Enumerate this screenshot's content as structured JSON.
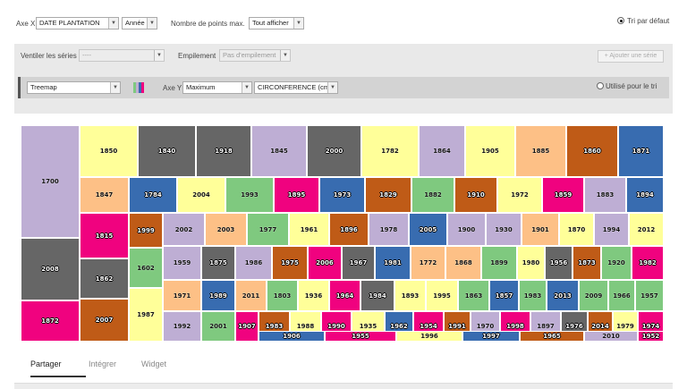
{
  "toolbar": {
    "axis_x_label": "Axe X",
    "axis_x_value": "DATE PLANTATION",
    "axis_x_unit": "Année",
    "max_points_label": "Nombre de points max.",
    "max_points_value": "Tout afficher",
    "default_sort_label": "Tri par défaut"
  },
  "series_panel": {
    "split_label": "Ventiler les séries",
    "split_value": "----",
    "stacking_label": "Empilement",
    "stacking_value": "Pas d'empilement",
    "add_series_button": "+ Ajouter une série",
    "chart_type": "Treemap",
    "axis_y_label": "Axe Y",
    "aggregation": "Maximum",
    "field": "CIRCONFERENCE (cm)",
    "use_for_sort_label": "Utilisé pour le tri",
    "swatch_colors": [
      "#7fc97f",
      "#beaed4",
      "#386cb0",
      "#f0027f"
    ]
  },
  "tabs": [
    {
      "label": "Partager",
      "active": true
    },
    {
      "label": "Intégrer",
      "active": false
    },
    {
      "label": "Widget",
      "active": false
    }
  ],
  "chart_data": {
    "type": "treemap",
    "palette": {
      "lavender": "#beaed4",
      "yellow": "#ffff99",
      "gray": "#666666",
      "orange": "#fdc086",
      "rust": "#bf5b17",
      "blue": "#386cb0",
      "green": "#7fc97f",
      "magenta": "#f0027f"
    },
    "cells": [
      {
        "label": "1700",
        "color": "lavender"
      },
      {
        "label": "2008",
        "color": "gray"
      },
      {
        "label": "1872",
        "color": "magenta"
      },
      {
        "label": "1850",
        "color": "yellow"
      },
      {
        "label": "1840",
        "color": "gray"
      },
      {
        "label": "1918",
        "color": "gray"
      },
      {
        "label": "1845",
        "color": "lavender"
      },
      {
        "label": "2000",
        "color": "gray"
      },
      {
        "label": "1782",
        "color": "yellow"
      },
      {
        "label": "1864",
        "color": "lavender"
      },
      {
        "label": "1905",
        "color": "yellow"
      },
      {
        "label": "1885",
        "color": "orange"
      },
      {
        "label": "1860",
        "color": "rust"
      },
      {
        "label": "1871",
        "color": "blue"
      },
      {
        "label": "1847",
        "color": "orange"
      },
      {
        "label": "1784",
        "color": "blue"
      },
      {
        "label": "2004",
        "color": "yellow"
      },
      {
        "label": "1993",
        "color": "green"
      },
      {
        "label": "1895",
        "color": "magenta"
      },
      {
        "label": "1973",
        "color": "blue"
      },
      {
        "label": "1829",
        "color": "rust"
      },
      {
        "label": "1882",
        "color": "green"
      },
      {
        "label": "1910",
        "color": "rust"
      },
      {
        "label": "1972",
        "color": "yellow"
      },
      {
        "label": "1859",
        "color": "magenta"
      },
      {
        "label": "1883",
        "color": "lavender"
      },
      {
        "label": "1894",
        "color": "blue"
      },
      {
        "label": "1815",
        "color": "magenta"
      },
      {
        "label": "1999",
        "color": "rust"
      },
      {
        "label": "2002",
        "color": "lavender"
      },
      {
        "label": "2003",
        "color": "orange"
      },
      {
        "label": "1977",
        "color": "green"
      },
      {
        "label": "1961",
        "color": "yellow"
      },
      {
        "label": "1896",
        "color": "rust"
      },
      {
        "label": "1978",
        "color": "lavender"
      },
      {
        "label": "2005",
        "color": "blue"
      },
      {
        "label": "1900",
        "color": "lavender"
      },
      {
        "label": "1930",
        "color": "lavender"
      },
      {
        "label": "1901",
        "color": "orange"
      },
      {
        "label": "1870",
        "color": "yellow"
      },
      {
        "label": "1994",
        "color": "lavender"
      },
      {
        "label": "2012",
        "color": "yellow"
      },
      {
        "label": "1862",
        "color": "gray"
      },
      {
        "label": "1602",
        "color": "green"
      },
      {
        "label": "1959",
        "color": "lavender"
      },
      {
        "label": "1875",
        "color": "gray"
      },
      {
        "label": "1986",
        "color": "lavender"
      },
      {
        "label": "1975",
        "color": "rust"
      },
      {
        "label": "2006",
        "color": "magenta"
      },
      {
        "label": "1967",
        "color": "gray"
      },
      {
        "label": "1981",
        "color": "blue"
      },
      {
        "label": "1772",
        "color": "orange"
      },
      {
        "label": "1868",
        "color": "orange"
      },
      {
        "label": "1899",
        "color": "green"
      },
      {
        "label": "1980",
        "color": "yellow"
      },
      {
        "label": "1956",
        "color": "gray"
      },
      {
        "label": "1873",
        "color": "rust"
      },
      {
        "label": "1920",
        "color": "green"
      },
      {
        "label": "1982",
        "color": "magenta"
      },
      {
        "label": "1971",
        "color": "orange"
      },
      {
        "label": "1989",
        "color": "blue"
      },
      {
        "label": "2011",
        "color": "orange"
      },
      {
        "label": "1803",
        "color": "green"
      },
      {
        "label": "1936",
        "color": "yellow"
      },
      {
        "label": "1964",
        "color": "magenta"
      },
      {
        "label": "1984",
        "color": "gray"
      },
      {
        "label": "1893",
        "color": "yellow"
      },
      {
        "label": "1995",
        "color": "yellow"
      },
      {
        "label": "1863",
        "color": "green"
      },
      {
        "label": "1857",
        "color": "blue"
      },
      {
        "label": "1983",
        "color": "green"
      },
      {
        "label": "2013",
        "color": "blue"
      },
      {
        "label": "2009",
        "color": "green"
      },
      {
        "label": "1966",
        "color": "green"
      },
      {
        "label": "1957",
        "color": "green"
      },
      {
        "label": "2007",
        "color": "rust"
      },
      {
        "label": "1987",
        "color": "yellow"
      },
      {
        "label": "1992",
        "color": "lavender"
      },
      {
        "label": "2001",
        "color": "green"
      },
      {
        "label": "1907",
        "color": "magenta"
      },
      {
        "label": "1983",
        "color": "rust"
      },
      {
        "label": "1988",
        "color": "yellow"
      },
      {
        "label": "1990",
        "color": "magenta"
      },
      {
        "label": "1935",
        "color": "yellow"
      },
      {
        "label": "1962",
        "color": "blue"
      },
      {
        "label": "1954",
        "color": "magenta"
      },
      {
        "label": "1991",
        "color": "rust"
      },
      {
        "label": "1970",
        "color": "lavender"
      },
      {
        "label": "1998",
        "color": "magenta"
      },
      {
        "label": "1897",
        "color": "lavender"
      },
      {
        "label": "1976",
        "color": "gray"
      },
      {
        "label": "2014",
        "color": "rust"
      },
      {
        "label": "1979",
        "color": "yellow"
      },
      {
        "label": "1974",
        "color": "magenta"
      },
      {
        "label": "1906",
        "color": "blue"
      },
      {
        "label": "1955",
        "color": "magenta"
      },
      {
        "label": "1996",
        "color": "yellow"
      },
      {
        "label": "1997",
        "color": "blue"
      },
      {
        "label": "1965",
        "color": "rust"
      },
      {
        "label": "2010",
        "color": "lavender"
      },
      {
        "label": "1952",
        "color": "magenta"
      }
    ]
  }
}
